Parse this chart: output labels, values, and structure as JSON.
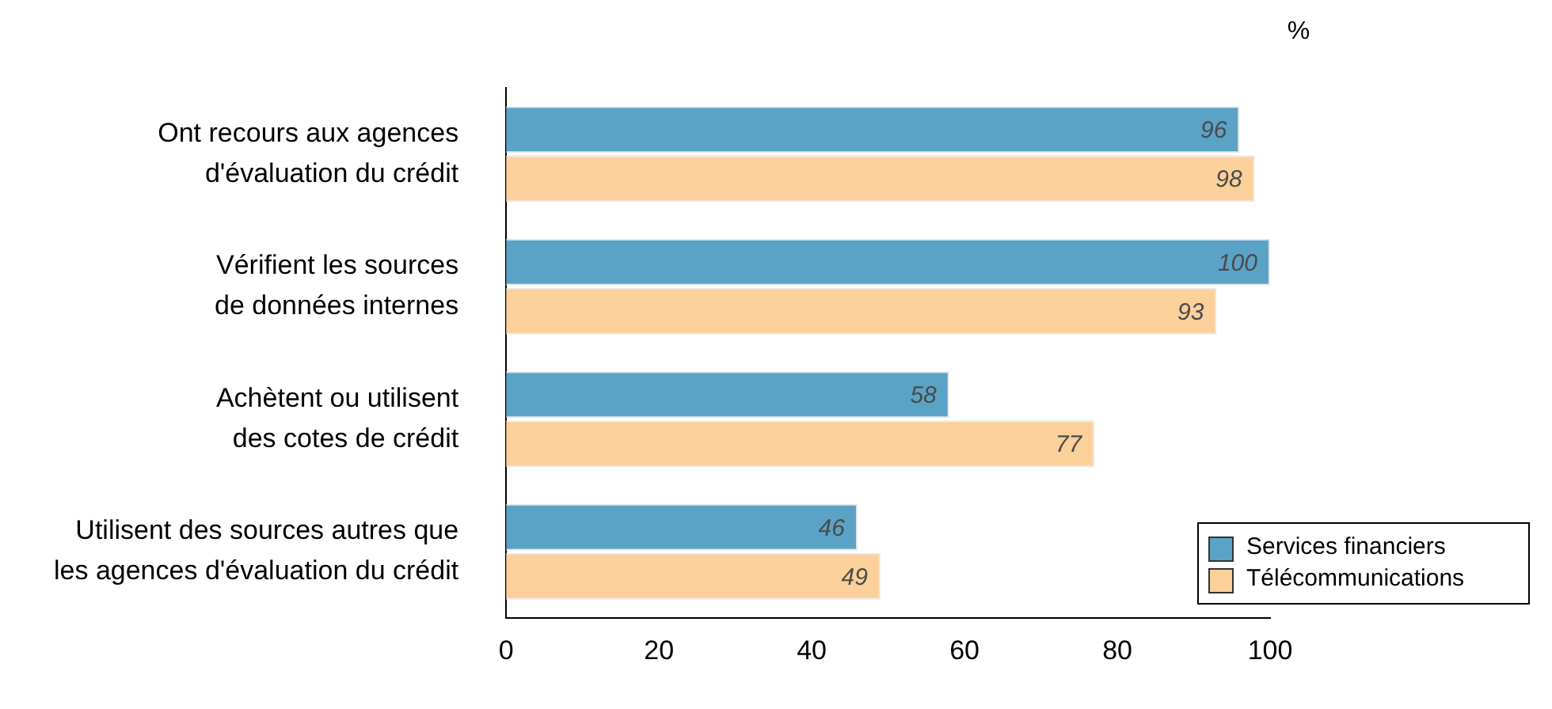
{
  "chart_data": {
    "type": "bar",
    "orientation": "horizontal",
    "xlabel": "%",
    "categories": [
      "Ont recours aux agences d'évaluation du crédit",
      "Vérifient les sources de données internes",
      "Achètent ou utilisent des cotes de crédit",
      "Utilisent des sources autres que les agences d'évaluation du crédit"
    ],
    "series": [
      {
        "name": "Services financiers",
        "color": "#5ba3c6",
        "values": [
          96,
          100,
          58,
          46
        ]
      },
      {
        "name": "Télécommunications",
        "color": "#fcd09a",
        "values": [
          98,
          93,
          77,
          49
        ]
      }
    ],
    "xlim": [
      0,
      100
    ],
    "xticks": [
      0,
      20,
      40,
      60,
      80,
      100
    ],
    "grid": false,
    "data_labels": true,
    "legend": "bottom right"
  }
}
